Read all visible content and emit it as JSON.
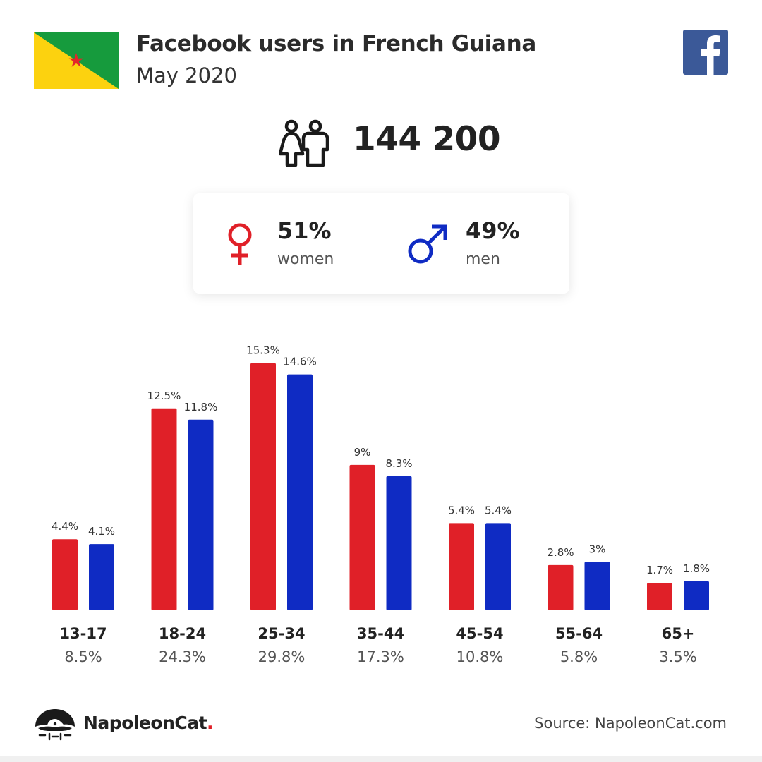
{
  "header": {
    "title": "Facebook users in French Guiana",
    "date": "May 2020"
  },
  "summary": {
    "total": "144 200"
  },
  "gender": {
    "women_pct": "51%",
    "women_label": "women",
    "men_pct": "49%",
    "men_label": "men"
  },
  "colors": {
    "women": "#e02028",
    "men": "#0f2bc3",
    "flag_green": "#169b3d",
    "flag_yellow": "#fcd20f",
    "flag_star": "#e3262a",
    "facebook": "#3b5998"
  },
  "icons": {
    "flag": "french-guiana-flag-icon",
    "facebook": "facebook-logo-icon",
    "users": "people-icon",
    "women": "female-symbol-icon",
    "men": "male-symbol-icon",
    "brand": "napoleoncat-logo-icon"
  },
  "chart_data": {
    "type": "bar",
    "categories": [
      "13-17",
      "18-24",
      "25-34",
      "35-44",
      "45-54",
      "55-64",
      "65+"
    ],
    "category_shares": [
      "8.5%",
      "24.3%",
      "29.8%",
      "17.3%",
      "10.8%",
      "5.8%",
      "3.5%"
    ],
    "series": [
      {
        "key": "women",
        "values": [
          4.4,
          12.5,
          15.3,
          9,
          5.4,
          2.8,
          1.7
        ],
        "labels": [
          "4.4%",
          "12.5%",
          "15.3%",
          "9%",
          "5.4%",
          "2.8%",
          "1.7%"
        ]
      },
      {
        "key": "men",
        "values": [
          4.1,
          11.8,
          14.6,
          8.3,
          5.4,
          3,
          1.8
        ],
        "labels": [
          "4.1%",
          "11.8%",
          "14.6%",
          "8.3%",
          "5.4%",
          "3%",
          "1.8%"
        ]
      }
    ],
    "grid": false
  },
  "footer": {
    "brand": "NapoleonCat",
    "brand_dot": ".",
    "source": "Source: NapoleonCat.com"
  }
}
